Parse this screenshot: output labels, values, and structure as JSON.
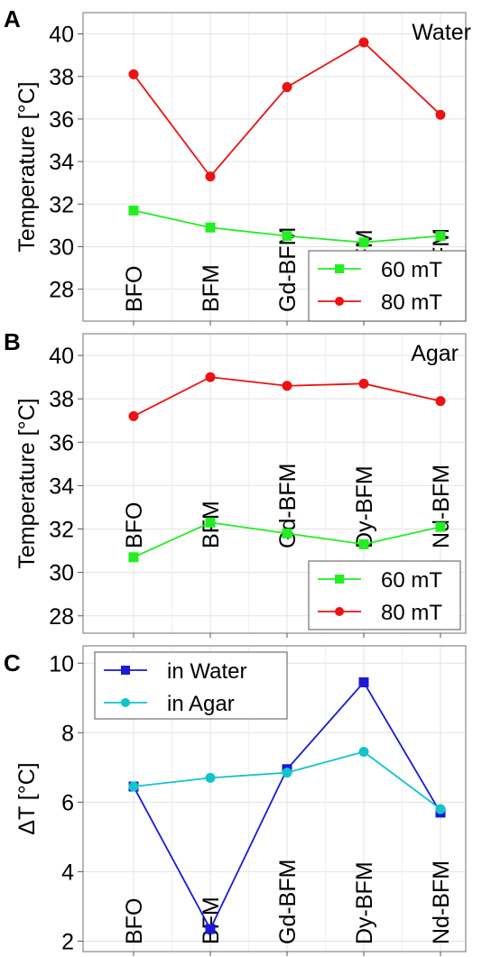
{
  "chart_data": [
    {
      "panel": "A",
      "type": "line",
      "title": "Water",
      "xlabel": "",
      "ylabel": "Temperature [°C]",
      "ylim": [
        26.5,
        41.0
      ],
      "yticks": [
        28,
        30,
        32,
        34,
        36,
        38,
        40
      ],
      "categories": [
        "BFO",
        "BFM",
        "Gd-BFM",
        "Dy-BFM",
        "Nd-BFM"
      ],
      "series": [
        {
          "name": "60 mT",
          "color": "#22ee22",
          "marker": "square",
          "values": [
            31.7,
            30.9,
            30.5,
            30.2,
            30.5
          ]
        },
        {
          "name": "80 mT",
          "color": "#ee1111",
          "marker": "circle",
          "values": [
            38.1,
            33.3,
            37.5,
            39.6,
            36.2
          ]
        }
      ],
      "legend": "bottom-right",
      "grid": true
    },
    {
      "panel": "B",
      "type": "line",
      "title": "Agar",
      "xlabel": "",
      "ylabel": "Temperature [°C]",
      "ylim": [
        27.2,
        41.0
      ],
      "yticks": [
        28,
        30,
        32,
        34,
        36,
        38,
        40
      ],
      "categories": [
        "BFO",
        "BFM",
        "Gd-BFM",
        "Dy-BFM",
        "Nd-BFM"
      ],
      "series": [
        {
          "name": "60 mT",
          "color": "#22ee22",
          "marker": "square",
          "values": [
            30.7,
            32.3,
            31.8,
            31.3,
            32.1
          ]
        },
        {
          "name": "80 mT",
          "color": "#ee1111",
          "marker": "circle",
          "values": [
            37.2,
            39.0,
            38.6,
            38.7,
            37.9
          ]
        }
      ],
      "legend": "bottom-right",
      "grid": true
    },
    {
      "panel": "C",
      "type": "line",
      "title": "",
      "xlabel": "",
      "ylabel": "ΔT [°C]",
      "ylim": [
        1.7,
        10.5
      ],
      "yticks": [
        2,
        4,
        6,
        8,
        10
      ],
      "categories": [
        "BFO",
        "BFM",
        "Gd-BFM",
        "Dy-BFM",
        "Nd-BFM"
      ],
      "series": [
        {
          "name": "in Water",
          "color": "#1a1ad6",
          "marker": "square",
          "values": [
            6.45,
            2.35,
            6.95,
            9.45,
            5.7
          ]
        },
        {
          "name": "in Agar",
          "color": "#11c4cc",
          "marker": "circle",
          "values": [
            6.45,
            6.7,
            6.85,
            7.45,
            5.8
          ]
        }
      ],
      "legend": "top-left",
      "grid": true
    }
  ]
}
